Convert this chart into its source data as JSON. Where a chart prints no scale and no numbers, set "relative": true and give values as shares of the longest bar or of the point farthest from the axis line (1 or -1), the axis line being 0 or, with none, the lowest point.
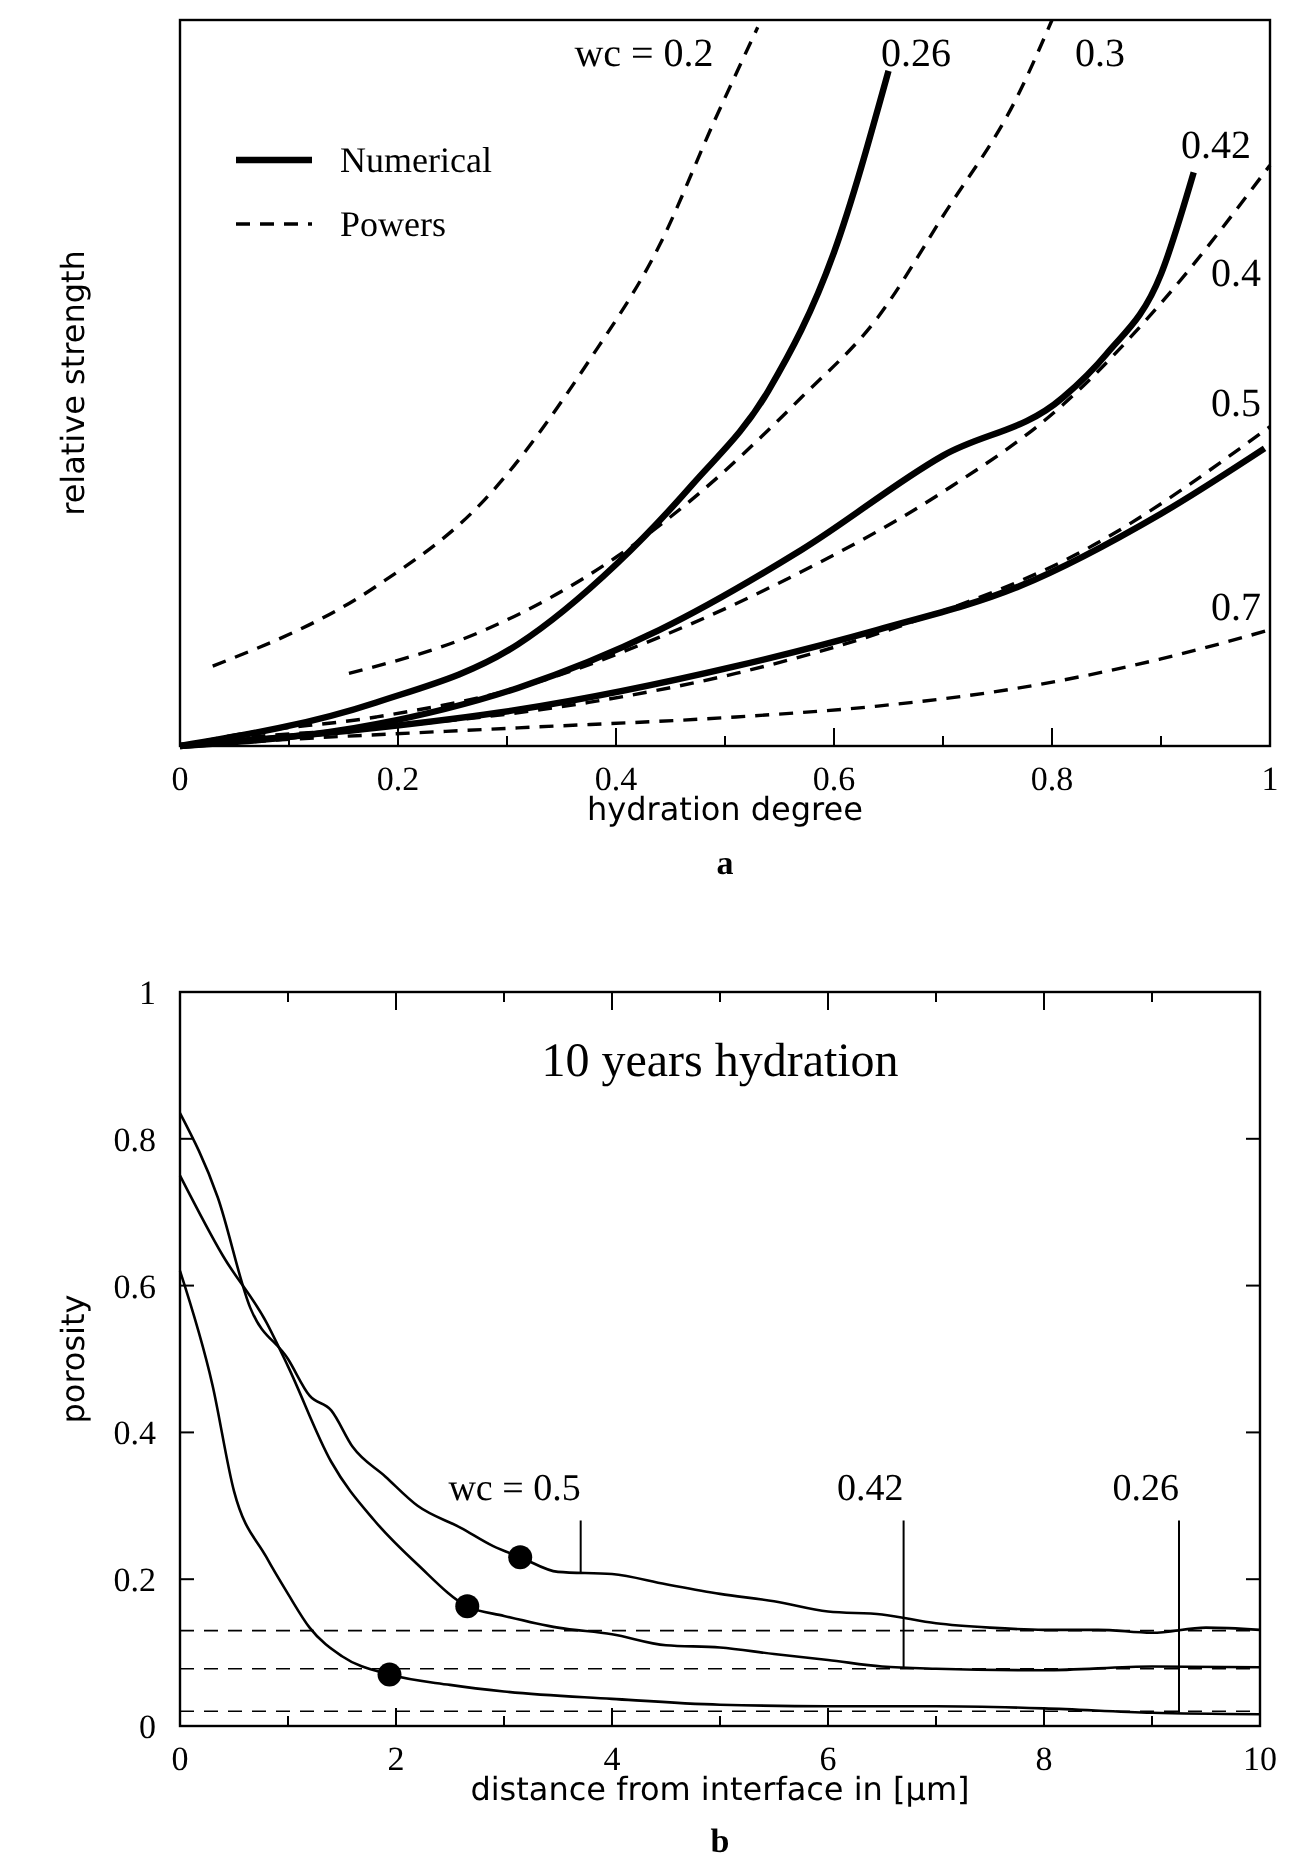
{
  "chart_data": [
    {
      "type": "line",
      "relative": true,
      "xlabel": "hydration degree",
      "ylabel": "relative strength",
      "legend": "top left",
      "xlim": [
        0,
        1
      ],
      "xticks": [
        0,
        {
          "value": 0.1,
          "label": null
        },
        0.2,
        {
          "value": 0.3,
          "label": null
        },
        0.4,
        {
          "value": 0.5,
          "label": null
        },
        0.6,
        {
          "value": 0.7,
          "label": null
        },
        0.8,
        {
          "value": 0.9,
          "label": null
        },
        1
      ],
      "series": [
        {
          "name": "Numerical",
          "color": "#000000",
          "line_style": "solid",
          "x": [
            0,
            0.18,
            0.31,
            0.4,
            0.47,
            0.54,
            0.6,
            0.65
          ],
          "values": [
            0,
            0.06,
            0.14,
            0.25,
            0.36,
            0.49,
            0.68,
            0.93
          ]
        },
        {
          "color": "#000000",
          "line_style": "solid",
          "x": [
            0,
            0.18,
            0.31,
            0.44,
            0.57,
            0.7,
            0.81,
            0.85,
            0.9,
            0.93
          ],
          "values": [
            0,
            0.03,
            0.08,
            0.16,
            0.27,
            0.4,
            0.48,
            0.54,
            0.65,
            0.79
          ]
        },
        {
          "color": "#000000",
          "line_style": "solid",
          "x": [
            0,
            0.18,
            0.31,
            0.51,
            0.64,
            0.77,
            0.9,
            0.995
          ],
          "values": [
            0,
            0.025,
            0.05,
            0.11,
            0.16,
            0.22,
            0.32,
            0.41
          ]
        },
        {
          "name": "Powers",
          "color": "#000000",
          "line_style": "dashed",
          "x": [
            0.03,
            0.18,
            0.28,
            0.375,
            0.44,
            0.49,
            0.53
          ],
          "values": [
            0.11,
            0.22,
            0.34,
            0.53,
            0.69,
            0.86,
            0.99
          ]
        },
        {
          "color": "#000000",
          "line_style": "dashed",
          "x": [
            0.155,
            0.28,
            0.4,
            0.47,
            0.57,
            0.64,
            0.7,
            0.77,
            0.8
          ],
          "values": [
            0.1,
            0.16,
            0.26,
            0.34,
            0.48,
            0.59,
            0.73,
            0.9,
            1
          ]
        },
        {
          "color": "#000000",
          "line_style": "dashed",
          "x": [
            0,
            0.05,
            0.18,
            0.31,
            0.44,
            0.57,
            0.7,
            0.81,
            0.9,
            1
          ],
          "values": [
            0,
            0.015,
            0.04,
            0.08,
            0.15,
            0.24,
            0.35,
            0.47,
            0.61,
            0.8
          ]
        },
        {
          "color": "#000000",
          "line_style": "dashed",
          "x": [
            0,
            0.05,
            0.18,
            0.375,
            0.51,
            0.67,
            0.83,
            1
          ],
          "values": [
            0,
            0.01,
            0.025,
            0.06,
            0.1,
            0.17,
            0.27,
            0.44
          ]
        },
        {
          "color": "#000000",
          "line_style": "dashed",
          "x": [
            0,
            0.11,
            0.31,
            0.51,
            0.64,
            0.77,
            0.9,
            1
          ],
          "values": [
            0,
            0.01,
            0.025,
            0.04,
            0.055,
            0.08,
            0.12,
            0.16
          ]
        }
      ],
      "annotations": [
        "wc = 0.2",
        "0.26",
        "0.3",
        "0.42",
        "0.4",
        "0.5",
        "0.7",
        "a"
      ]
    },
    {
      "type": "line",
      "title": "10 years hydration",
      "xlabel": "distance from interface in [μm]",
      "ylabel": "porosity",
      "xlim": [
        0,
        10
      ],
      "xticks": [
        0,
        {
          "value": 1,
          "label": null
        },
        2,
        {
          "value": 3,
          "label": null
        },
        4,
        {
          "value": 5,
          "label": null
        },
        6,
        {
          "value": 7,
          "label": null
        },
        8,
        {
          "value": 9,
          "label": null
        },
        10
      ],
      "ylim": [
        0,
        1
      ],
      "yticks": [
        0,
        0.2,
        0.4,
        0.6,
        0.8,
        1
      ],
      "series": [
        {
          "color": "#000000",
          "x": [
            0,
            0.35,
            0.65,
            1,
            1.2,
            1.4,
            1.6,
            1.9,
            2.2,
            2.6,
            2.9,
            3.15,
            3.5,
            4,
            4.5,
            5,
            5.5,
            6,
            6.5,
            7,
            7.5,
            8,
            8.5,
            9,
            9.5,
            10
          ],
          "values": [
            0.835,
            0.72,
            0.57,
            0.5,
            0.45,
            0.43,
            0.38,
            0.34,
            0.3,
            0.27,
            0.245,
            0.23,
            0.21,
            0.207,
            0.193,
            0.18,
            0.17,
            0.156,
            0.152,
            0.14,
            0.134,
            0.131,
            0.131,
            0.127,
            0.134,
            0.131
          ]
        },
        {
          "color": "#000000",
          "x": [
            0,
            0.4,
            0.8,
            1,
            1.4,
            1.8,
            2.2,
            2.66,
            3,
            3.5,
            4,
            4.5,
            5,
            5.5,
            6,
            6.5,
            7,
            8,
            9,
            10
          ],
          "values": [
            0.75,
            0.64,
            0.55,
            0.49,
            0.36,
            0.28,
            0.22,
            0.163,
            0.15,
            0.134,
            0.125,
            0.11,
            0.107,
            0.098,
            0.09,
            0.081,
            0.078,
            0.076,
            0.081,
            0.08
          ]
        },
        {
          "color": "#000000",
          "x": [
            0,
            0.3,
            0.5,
            0.8,
            1,
            1.2,
            1.5,
            1.94,
            2.5,
            3,
            4,
            5,
            6,
            7,
            8,
            9,
            10
          ],
          "values": [
            0.62,
            0.465,
            0.32,
            0.23,
            0.18,
            0.134,
            0.095,
            0.07,
            0.056,
            0.047,
            0.037,
            0.029,
            0.027,
            0.027,
            0.024,
            0.018,
            0.016
          ]
        },
        {
          "type": "scatter",
          "marker": "circle",
          "color": "#000000",
          "x": [
            3.15,
            2.66,
            1.94
          ],
          "values": [
            0.23,
            0.163,
            0.07
          ]
        }
      ],
      "ref_lines": [
        {
          "axis": "y",
          "value": 0.13,
          "line_style": "dashed"
        },
        {
          "axis": "y",
          "value": 0.078,
          "line_style": "dashed"
        },
        {
          "axis": "y",
          "value": 0.02,
          "line_style": "dashed"
        }
      ],
      "annotations": [
        {
          "text": "wc = 0.5",
          "x": 3.71,
          "y": 0.209
        },
        {
          "text": "0.42",
          "x": 6.7,
          "y": 0.079
        },
        {
          "text": "0.26",
          "x": 9.25,
          "y": 0.018
        },
        "b"
      ]
    }
  ]
}
